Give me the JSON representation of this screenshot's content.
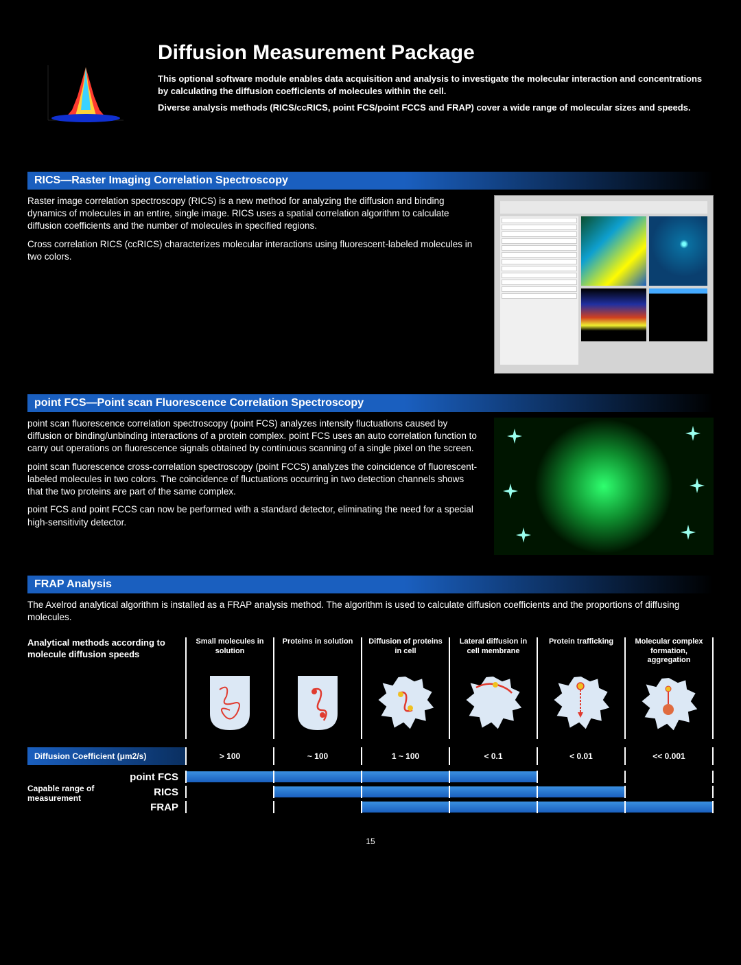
{
  "header": {
    "title": "Diffusion Measurement Package",
    "intro1": "This optional software module enables data acquisition and analysis to investigate the molecular interaction and concentrations by calculating the diffusion coefficients of molecules within the cell.",
    "intro2": "Diverse analysis methods (RICS/ccRICS, point FCS/point FCCS and FRAP) cover a wide range of molecular sizes and speeds."
  },
  "rics": {
    "heading": "RICS—Raster Imaging Correlation Spectroscopy",
    "p1": "Raster image correlation spectroscopy (RICS) is a new method for analyzing the diffusion and binding dynamics of molecules in an entire, single image. RICS uses a spatial correlation algorithm to calculate diffusion coefficients and the number of molecules in specified regions.",
    "p2": "Cross correlation RICS (ccRICS) characterizes molecular interactions using fluorescent-labeled molecules in two colors."
  },
  "fcs": {
    "heading": "point FCS—Point scan Fluorescence Correlation Spectroscopy",
    "p1": "point scan fluorescence correlation spectroscopy (point FCS) analyzes intensity fluctuations caused by diffusion or binding/unbinding interactions of a protein complex. point FCS uses an auto correlation function to carry out operations on fluorescence signals obtained by continuous scanning of a single pixel on the screen.",
    "p2": "point scan fluorescence cross-correlation spectroscopy (point FCCS) analyzes the coincidence of fluorescent-labeled molecules in two colors. The coincidence of fluctuations occurring in two detection channels shows that the two proteins are part of the same complex.",
    "p3": "point FCS and point FCCS can now be performed with a standard detector, eliminating the need for a special high-sensitivity detector."
  },
  "frap": {
    "heading": "FRAP Analysis",
    "p1": "The Axelrod analytical algorithm is installed as a FRAP analysis method. The algorithm is used to calculate diffusion coefficients and the proportions of diffusing molecules."
  },
  "methods": {
    "label": "Analytical methods according to molecule diffusion speeds",
    "cols": [
      "Small molecules in solution",
      "Proteins in solution",
      "Diffusion of proteins in cell",
      "Lateral diffusion in cell membrane",
      "Protein trafficking",
      "Molecular complex formation, aggregation"
    ]
  },
  "coef": {
    "label": "Diffusion Coefficient  (μm2/s)",
    "values": [
      "> 100",
      "~ 100",
      "1  ~  100",
      "< 0.1",
      "< 0.01",
      "<< 0.001"
    ]
  },
  "ranges": {
    "label": "Capable range of measurement",
    "rows": [
      {
        "name": "point FCS",
        "fill": [
          [
            0,
            100
          ],
          [
            0,
            100
          ],
          [
            0,
            100
          ],
          [
            0,
            100
          ],
          [
            0,
            0
          ],
          [
            0,
            0
          ]
        ]
      },
      {
        "name": "RICS",
        "fill": [
          [
            0,
            0
          ],
          [
            0,
            100
          ],
          [
            0,
            100
          ],
          [
            0,
            100
          ],
          [
            0,
            100
          ],
          [
            0,
            0
          ]
        ]
      },
      {
        "name": "FRAP",
        "fill": [
          [
            0,
            0
          ],
          [
            0,
            0
          ],
          [
            0,
            100
          ],
          [
            0,
            100
          ],
          [
            0,
            100
          ],
          [
            0,
            100
          ]
        ]
      }
    ]
  },
  "colors": {
    "bar_gradient_top": "#3a8fe0",
    "bar_gradient_bottom": "#1a5fbf",
    "heading_blue": "#1a5fbf"
  },
  "page": "15"
}
